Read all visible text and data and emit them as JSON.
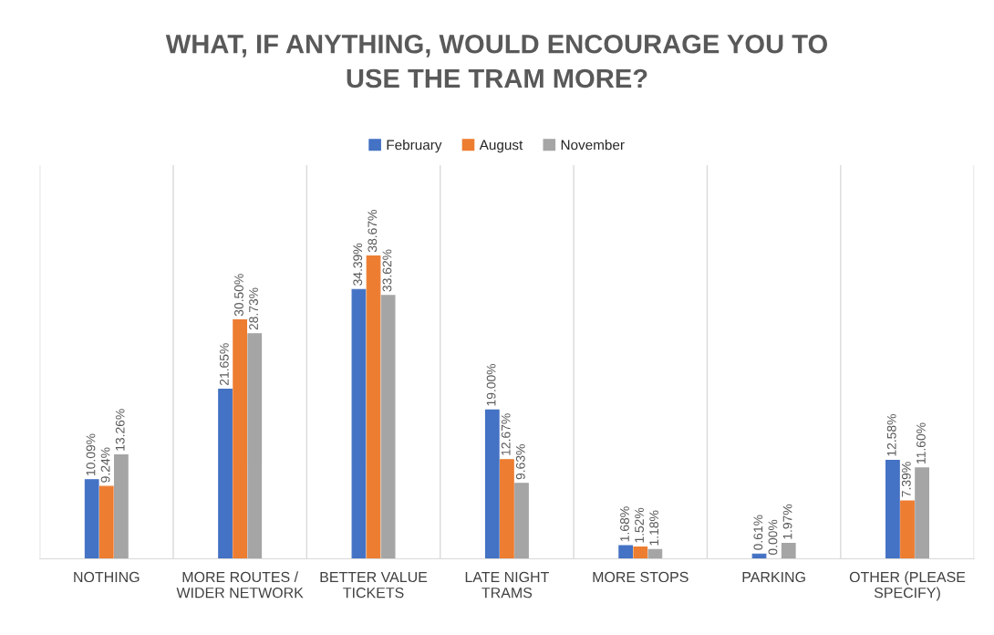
{
  "chart_data": {
    "type": "bar",
    "title": "WHAT, IF ANYTHING, WOULD ENCOURAGE YOU TO USE THE TRAM MORE?",
    "categories": [
      "NOTHING",
      "MORE ROUTES / WIDER NETWORK",
      "BETTER VALUE TICKETS",
      "LATE NIGHT TRAMS",
      "MORE STOPS",
      "PARKING",
      "OTHER (PLEASE SPECIFY)"
    ],
    "series": [
      {
        "name": "February",
        "color": "#4472c4",
        "values": [
          10.09,
          21.65,
          34.39,
          19.0,
          1.68,
          0.61,
          12.58
        ],
        "value_labels": [
          "10.09%",
          "21.65%",
          "34.39%",
          "19.00%",
          "1.68%",
          "0.61%",
          "12.58%"
        ]
      },
      {
        "name": "August",
        "color": "#ed7d31",
        "values": [
          9.24,
          30.5,
          38.67,
          12.67,
          1.52,
          0.0,
          7.39
        ],
        "value_labels": [
          "9.24%",
          "30.50%",
          "38.67%",
          "12.67%",
          "1.52%",
          "0.00%",
          "7.39%"
        ]
      },
      {
        "name": "November",
        "color": "#a5a5a5",
        "values": [
          13.26,
          28.73,
          33.62,
          9.63,
          1.18,
          1.97,
          11.6
        ],
        "value_labels": [
          "13.26%",
          "28.73%",
          "33.62%",
          "9.63%",
          "1.18%",
          "1.97%",
          "11.60%"
        ]
      }
    ],
    "legend": "top",
    "grid": "x"
  }
}
